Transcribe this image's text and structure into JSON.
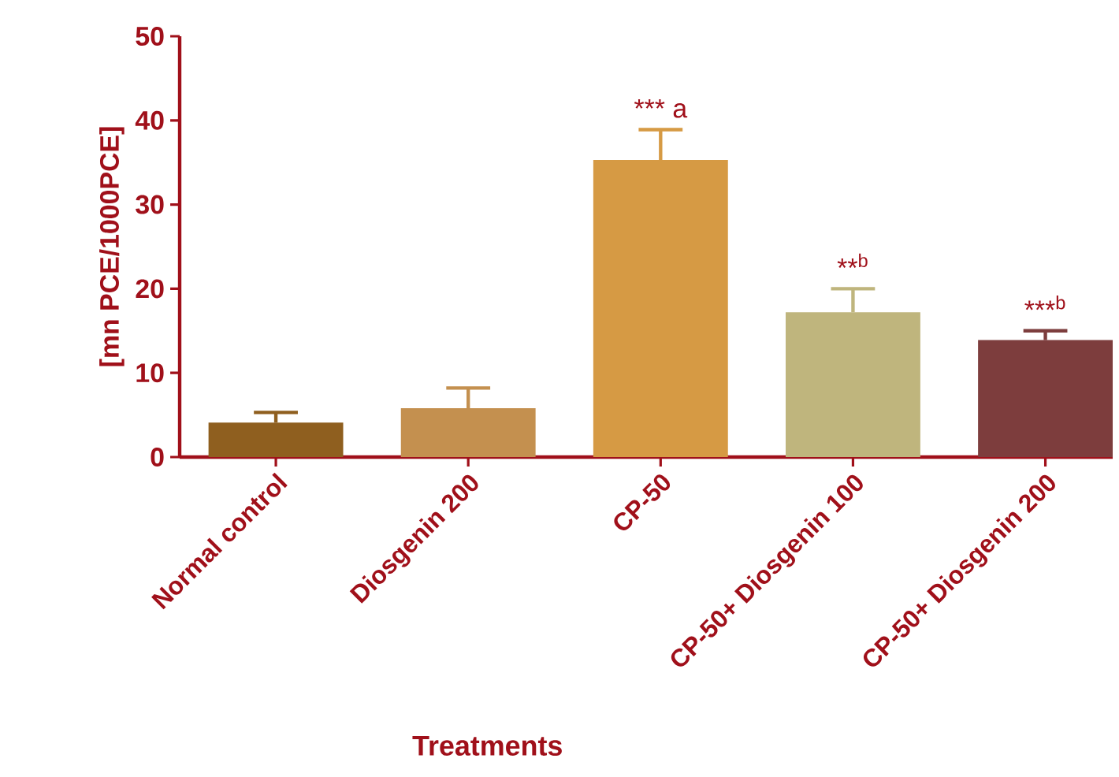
{
  "chart_data": {
    "type": "bar",
    "xlabel": "Treatments",
    "ylabel": "[mn PCE/1000PCE]",
    "categories": [
      "Normal control",
      "Diosgenin 200",
      "CP-50",
      "CP-50+ Diosgenin 100",
      "CP-50+ Diosgenin 200"
    ],
    "values": [
      4.1,
      5.8,
      35.3,
      17.2,
      13.9
    ],
    "colors": [
      "#8f5f1f",
      "#c4904f",
      "#d69a44",
      "#bfb57d",
      "#7d3d3d"
    ],
    "errors": [
      1.2,
      2.4,
      3.6,
      2.8,
      1.1
    ],
    "ylim": [
      0,
      50
    ],
    "yticks": [
      0,
      10,
      20,
      30,
      40,
      50
    ],
    "annotations": [
      "*** a",
      "**$^{b}$",
      "***$^{b}$"
    ]
  }
}
